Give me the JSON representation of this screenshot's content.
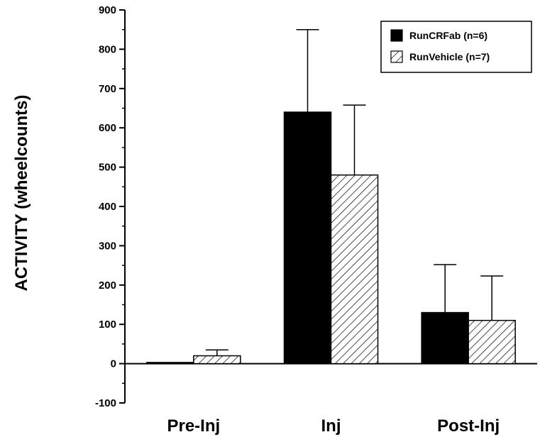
{
  "chart_data": {
    "type": "bar",
    "title": "",
    "xlabel": "",
    "ylabel": "ACTIVITY  (wheelcounts)",
    "ylim": [
      -100,
      900
    ],
    "yticks": [
      -100,
      0,
      100,
      200,
      300,
      400,
      500,
      600,
      700,
      800,
      900
    ],
    "categories": [
      "Pre-Inj",
      "Inj",
      "Post-Inj"
    ],
    "series": [
      {
        "name": "RunCRFab (n=6)",
        "values": [
          3,
          640,
          130
        ],
        "error": [
          0,
          210,
          122
        ],
        "fill": "solid",
        "color": "#000000"
      },
      {
        "name": "RunVehicle (n=7)",
        "values": [
          20,
          480,
          110
        ],
        "error": [
          15,
          178,
          113
        ],
        "fill": "hatched",
        "color": "#000000"
      }
    ],
    "legend": "top-right",
    "grid": false
  }
}
